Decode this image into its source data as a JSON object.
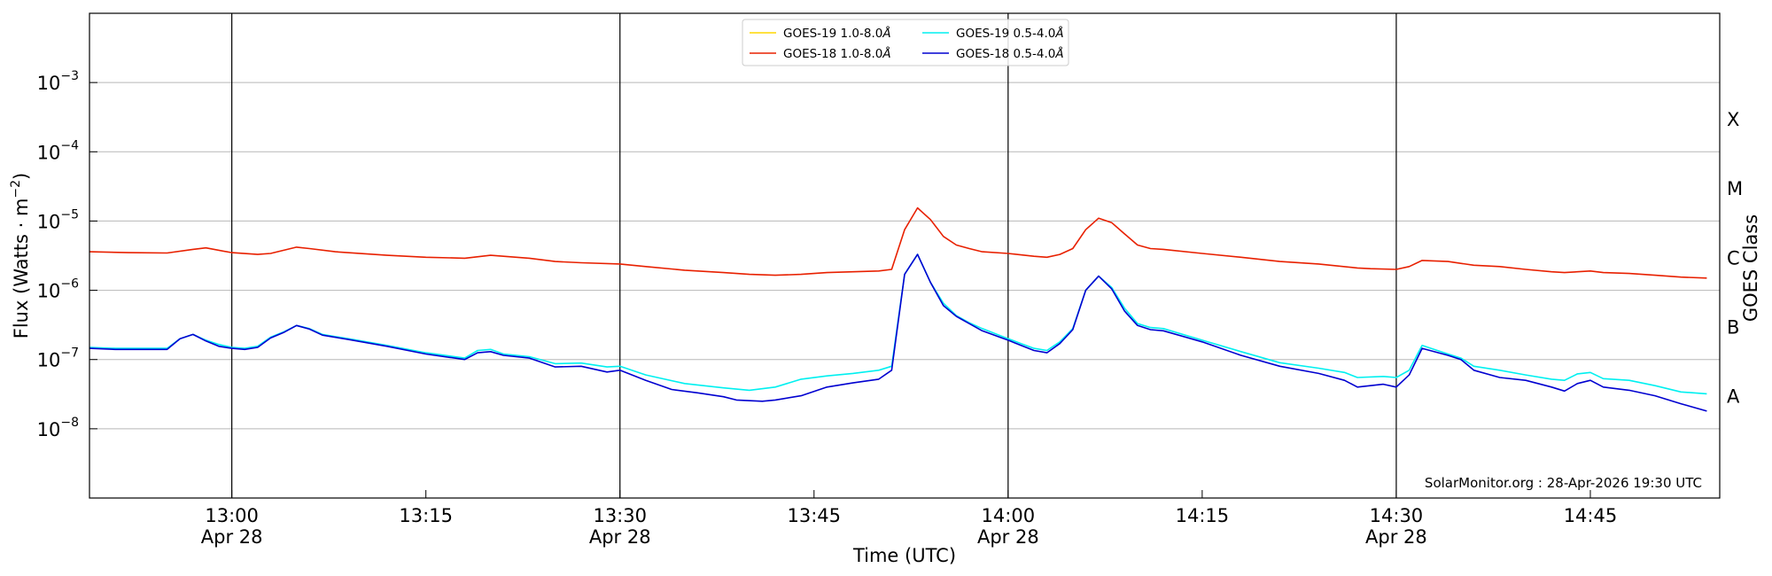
{
  "chart_data": {
    "type": "line",
    "title": "",
    "xlabel": "Time (UTC)",
    "ylabel_main": "Flux (Watts · m",
    "ylabel_sup": "−2",
    "ylabel_close": ")",
    "y_scale": "log",
    "ylim": [
      1e-09,
      0.01
    ],
    "x_range": [
      "12:49",
      "14:55"
    ],
    "grid": "horizontal at decades",
    "y_ticks": [
      {
        "value": 1e-08,
        "base": "10",
        "exp": "−8"
      },
      {
        "value": 1e-07,
        "base": "10",
        "exp": "−7"
      },
      {
        "value": 1e-06,
        "base": "10",
        "exp": "−6"
      },
      {
        "value": 1e-05,
        "base": "10",
        "exp": "−5"
      },
      {
        "value": 0.0001,
        "base": "10",
        "exp": "−4"
      },
      {
        "value": 0.001,
        "base": "10",
        "exp": "−3"
      }
    ],
    "x_ticks": [
      {
        "time": "13:00",
        "label": "13:00",
        "date": "Apr 28",
        "vline": true
      },
      {
        "time": "13:15",
        "label": "13:15",
        "date": "",
        "vline": false
      },
      {
        "time": "13:30",
        "label": "13:30",
        "date": "Apr 28",
        "vline": true
      },
      {
        "time": "13:45",
        "label": "13:45",
        "date": "",
        "vline": false
      },
      {
        "time": "14:00",
        "label": "14:00",
        "date": "Apr 28",
        "vline": true
      },
      {
        "time": "14:15",
        "label": "14:15",
        "date": "",
        "vline": false
      },
      {
        "time": "14:30",
        "label": "14:30",
        "date": "Apr 28",
        "vline": true
      },
      {
        "time": "14:45",
        "label": "14:45",
        "date": "",
        "vline": false
      }
    ],
    "right_axis": {
      "title": "GOES Class",
      "classes": [
        {
          "label": "A",
          "value": 3e-08
        },
        {
          "label": "B",
          "value": 3e-07
        },
        {
          "label": "C",
          "value": 3e-06
        },
        {
          "label": "M",
          "value": 3e-05
        },
        {
          "label": "X",
          "value": 0.0003
        }
      ]
    },
    "legend": {
      "placement": "top-center",
      "entries": [
        {
          "name": "GOES-19 1.0-8.0",
          "unit": "Å",
          "series": 0
        },
        {
          "name": "GOES-19 0.5-4.0",
          "unit": "Å",
          "series": 1
        },
        {
          "name": "GOES-18 1.0-8.0",
          "unit": "Å",
          "series": 2
        },
        {
          "name": "GOES-18 0.5-4.0",
          "unit": "Å",
          "series": 3
        }
      ]
    },
    "credit": "SolarMonitor.org : 28-Apr-2026 19:30 UTC",
    "series": [
      {
        "name": "GOES-19 1.0-8.0Å",
        "color": "#ffd700",
        "points": []
      },
      {
        "name": "GOES-19 0.5-4.0Å",
        "color": "#00f0f0",
        "points": [
          [
            "12:49",
            1.5e-07
          ],
          [
            "12:51",
            1.45e-07
          ],
          [
            "12:53",
            1.45e-07
          ],
          [
            "12:55",
            1.45e-07
          ],
          [
            "12:56",
            2e-07
          ],
          [
            "12:57",
            2.3e-07
          ],
          [
            "12:58",
            1.9e-07
          ],
          [
            "12:59",
            1.65e-07
          ],
          [
            "13:00",
            1.5e-07
          ],
          [
            "13:01",
            1.45e-07
          ],
          [
            "13:02",
            1.55e-07
          ],
          [
            "13:03",
            2.1e-07
          ],
          [
            "13:04",
            2.5e-07
          ],
          [
            "13:05",
            3.1e-07
          ],
          [
            "13:06",
            2.8e-07
          ],
          [
            "13:07",
            2.3e-07
          ],
          [
            "13:09",
            2e-07
          ],
          [
            "13:12",
            1.6e-07
          ],
          [
            "13:15",
            1.25e-07
          ],
          [
            "13:18",
            1.05e-07
          ],
          [
            "13:19",
            1.35e-07
          ],
          [
            "13:20",
            1.4e-07
          ],
          [
            "13:21",
            1.2e-07
          ],
          [
            "13:23",
            1.1e-07
          ],
          [
            "13:25",
            8.7e-08
          ],
          [
            "13:27",
            8.9e-08
          ],
          [
            "13:29",
            7.8e-08
          ],
          [
            "13:30",
            8e-08
          ],
          [
            "13:32",
            6e-08
          ],
          [
            "13:35",
            4.5e-08
          ],
          [
            "13:38",
            3.9e-08
          ],
          [
            "13:40",
            3.6e-08
          ],
          [
            "13:42",
            4e-08
          ],
          [
            "13:44",
            5.2e-08
          ],
          [
            "13:46",
            5.8e-08
          ],
          [
            "13:48",
            6.3e-08
          ],
          [
            "13:50",
            7e-08
          ],
          [
            "13:51",
            8e-08
          ],
          [
            "13:52",
            1.7e-06
          ],
          [
            "13:53",
            3.3e-06
          ],
          [
            "13:54",
            1.3e-06
          ],
          [
            "13:55",
            6.5e-07
          ],
          [
            "13:56",
            4.3e-07
          ],
          [
            "13:57",
            3.4e-07
          ],
          [
            "13:58",
            2.8e-07
          ],
          [
            "14:00",
            2e-07
          ],
          [
            "14:01",
            1.7e-07
          ],
          [
            "14:02",
            1.45e-07
          ],
          [
            "14:03",
            1.35e-07
          ],
          [
            "14:04",
            1.8e-07
          ],
          [
            "14:05",
            2.8e-07
          ],
          [
            "14:06",
            1e-06
          ],
          [
            "14:07",
            1.6e-06
          ],
          [
            "14:08",
            1.1e-06
          ],
          [
            "14:09",
            5.5e-07
          ],
          [
            "14:10",
            3.3e-07
          ],
          [
            "14:11",
            2.9e-07
          ],
          [
            "14:12",
            2.8e-07
          ],
          [
            "14:15",
            1.9e-07
          ],
          [
            "14:18",
            1.3e-07
          ],
          [
            "14:21",
            9e-08
          ],
          [
            "14:24",
            7.5e-08
          ],
          [
            "14:26",
            6.5e-08
          ],
          [
            "14:27",
            5.5e-08
          ],
          [
            "14:29",
            5.7e-08
          ],
          [
            "14:30",
            5.5e-08
          ],
          [
            "14:31",
            7e-08
          ],
          [
            "14:32",
            1.6e-07
          ],
          [
            "14:34",
            1.2e-07
          ],
          [
            "14:35",
            1.05e-07
          ],
          [
            "14:36",
            8e-08
          ],
          [
            "14:38",
            7e-08
          ],
          [
            "14:40",
            6e-08
          ],
          [
            "14:42",
            5.2e-08
          ],
          [
            "14:43",
            5e-08
          ],
          [
            "14:44",
            6.2e-08
          ],
          [
            "14:45",
            6.5e-08
          ],
          [
            "14:46",
            5.3e-08
          ],
          [
            "14:48",
            5e-08
          ],
          [
            "14:50",
            4.2e-08
          ],
          [
            "14:52",
            3.4e-08
          ],
          [
            "14:54",
            3.2e-08
          ]
        ]
      },
      {
        "name": "GOES-18 1.0-8.0Å",
        "color": "#e82000",
        "points": [
          [
            "12:49",
            3.6e-06
          ],
          [
            "12:52",
            3.5e-06
          ],
          [
            "12:55",
            3.45e-06
          ],
          [
            "12:57",
            3.9e-06
          ],
          [
            "12:58",
            4.1e-06
          ],
          [
            "13:00",
            3.5e-06
          ],
          [
            "13:02",
            3.3e-06
          ],
          [
            "13:03",
            3.4e-06
          ],
          [
            "13:05",
            4.2e-06
          ],
          [
            "13:06",
            4e-06
          ],
          [
            "13:08",
            3.6e-06
          ],
          [
            "13:12",
            3.2e-06
          ],
          [
            "13:15",
            3e-06
          ],
          [
            "13:18",
            2.9e-06
          ],
          [
            "13:20",
            3.2e-06
          ],
          [
            "13:23",
            2.9e-06
          ],
          [
            "13:25",
            2.6e-06
          ],
          [
            "13:27",
            2.5e-06
          ],
          [
            "13:30",
            2.4e-06
          ],
          [
            "13:32",
            2.2e-06
          ],
          [
            "13:35",
            1.95e-06
          ],
          [
            "13:38",
            1.8e-06
          ],
          [
            "13:40",
            1.7e-06
          ],
          [
            "13:42",
            1.65e-06
          ],
          [
            "13:44",
            1.7e-06
          ],
          [
            "13:46",
            1.8e-06
          ],
          [
            "13:48",
            1.85e-06
          ],
          [
            "13:50",
            1.9e-06
          ],
          [
            "13:51",
            2e-06
          ],
          [
            "13:52",
            7.5e-06
          ],
          [
            "13:53",
            1.55e-05
          ],
          [
            "13:54",
            1.05e-05
          ],
          [
            "13:55",
            6e-06
          ],
          [
            "13:56",
            4.5e-06
          ],
          [
            "13:57",
            4e-06
          ],
          [
            "13:58",
            3.6e-06
          ],
          [
            "14:00",
            3.4e-06
          ],
          [
            "14:02",
            3.1e-06
          ],
          [
            "14:03",
            3e-06
          ],
          [
            "14:04",
            3.3e-06
          ],
          [
            "14:05",
            4e-06
          ],
          [
            "14:06",
            7.5e-06
          ],
          [
            "14:07",
            1.1e-05
          ],
          [
            "14:08",
            9.5e-06
          ],
          [
            "14:09",
            6.5e-06
          ],
          [
            "14:10",
            4.5e-06
          ],
          [
            "14:11",
            4e-06
          ],
          [
            "14:12",
            3.9e-06
          ],
          [
            "14:15",
            3.4e-06
          ],
          [
            "14:18",
            3e-06
          ],
          [
            "14:21",
            2.6e-06
          ],
          [
            "14:24",
            2.4e-06
          ],
          [
            "14:27",
            2.1e-06
          ],
          [
            "14:28",
            2.05e-06
          ],
          [
            "14:30",
            2e-06
          ],
          [
            "14:31",
            2.2e-06
          ],
          [
            "14:32",
            2.7e-06
          ],
          [
            "14:34",
            2.6e-06
          ],
          [
            "14:36",
            2.3e-06
          ],
          [
            "14:38",
            2.2e-06
          ],
          [
            "14:40",
            2e-06
          ],
          [
            "14:42",
            1.85e-06
          ],
          [
            "14:43",
            1.8e-06
          ],
          [
            "14:45",
            1.9e-06
          ],
          [
            "14:46",
            1.8e-06
          ],
          [
            "14:48",
            1.75e-06
          ],
          [
            "14:50",
            1.65e-06
          ],
          [
            "14:52",
            1.55e-06
          ],
          [
            "14:54",
            1.5e-06
          ]
        ]
      },
      {
        "name": "GOES-18 0.5-4.0Å",
        "color": "#0000d0",
        "points": [
          [
            "12:49",
            1.45e-07
          ],
          [
            "12:51",
            1.4e-07
          ],
          [
            "12:53",
            1.4e-07
          ],
          [
            "12:55",
            1.4e-07
          ],
          [
            "12:56",
            2e-07
          ],
          [
            "12:57",
            2.3e-07
          ],
          [
            "12:58",
            1.85e-07
          ],
          [
            "12:59",
            1.55e-07
          ],
          [
            "13:00",
            1.45e-07
          ],
          [
            "13:01",
            1.4e-07
          ],
          [
            "13:02",
            1.5e-07
          ],
          [
            "13:03",
            2.05e-07
          ],
          [
            "13:04",
            2.45e-07
          ],
          [
            "13:05",
            3.1e-07
          ],
          [
            "13:06",
            2.75e-07
          ],
          [
            "13:07",
            2.25e-07
          ],
          [
            "13:09",
            1.95e-07
          ],
          [
            "13:12",
            1.55e-07
          ],
          [
            "13:15",
            1.2e-07
          ],
          [
            "13:18",
            1e-07
          ],
          [
            "13:19",
            1.25e-07
          ],
          [
            "13:20",
            1.3e-07
          ],
          [
            "13:21",
            1.15e-07
          ],
          [
            "13:23",
            1.05e-07
          ],
          [
            "13:25",
            7.8e-08
          ],
          [
            "13:27",
            8e-08
          ],
          [
            "13:29",
            6.6e-08
          ],
          [
            "13:30",
            7e-08
          ],
          [
            "13:32",
            5e-08
          ],
          [
            "13:34",
            3.7e-08
          ],
          [
            "13:36",
            3.3e-08
          ],
          [
            "13:38",
            2.9e-08
          ],
          [
            "13:39",
            2.6e-08
          ],
          [
            "13:41",
            2.5e-08
          ],
          [
            "13:42",
            2.6e-08
          ],
          [
            "13:44",
            3e-08
          ],
          [
            "13:46",
            4e-08
          ],
          [
            "13:48",
            4.6e-08
          ],
          [
            "13:50",
            5.2e-08
          ],
          [
            "13:51",
            7e-08
          ],
          [
            "13:52",
            1.7e-06
          ],
          [
            "13:53",
            3.3e-06
          ],
          [
            "13:54",
            1.3e-06
          ],
          [
            "13:55",
            6e-07
          ],
          [
            "13:56",
            4.2e-07
          ],
          [
            "13:57",
            3.3e-07
          ],
          [
            "13:58",
            2.6e-07
          ],
          [
            "14:00",
            1.9e-07
          ],
          [
            "14:01",
            1.6e-07
          ],
          [
            "14:02",
            1.35e-07
          ],
          [
            "14:03",
            1.25e-07
          ],
          [
            "14:04",
            1.7e-07
          ],
          [
            "14:05",
            2.7e-07
          ],
          [
            "14:06",
            1e-06
          ],
          [
            "14:07",
            1.6e-06
          ],
          [
            "14:08",
            1.05e-06
          ],
          [
            "14:09",
            5e-07
          ],
          [
            "14:10",
            3.1e-07
          ],
          [
            "14:11",
            2.7e-07
          ],
          [
            "14:12",
            2.6e-07
          ],
          [
            "14:15",
            1.8e-07
          ],
          [
            "14:18",
            1.15e-07
          ],
          [
            "14:21",
            8e-08
          ],
          [
            "14:24",
            6.3e-08
          ],
          [
            "14:26",
            5e-08
          ],
          [
            "14:27",
            4e-08
          ],
          [
            "14:29",
            4.4e-08
          ],
          [
            "14:30",
            4e-08
          ],
          [
            "14:31",
            6e-08
          ],
          [
            "14:32",
            1.45e-07
          ],
          [
            "14:34",
            1.15e-07
          ],
          [
            "14:35",
            1e-07
          ],
          [
            "14:36",
            7e-08
          ],
          [
            "14:38",
            5.5e-08
          ],
          [
            "14:40",
            5e-08
          ],
          [
            "14:42",
            4e-08
          ],
          [
            "14:43",
            3.5e-08
          ],
          [
            "14:44",
            4.5e-08
          ],
          [
            "14:45",
            5e-08
          ],
          [
            "14:46",
            4e-08
          ],
          [
            "14:48",
            3.6e-08
          ],
          [
            "14:50",
            3e-08
          ],
          [
            "14:52",
            2.3e-08
          ],
          [
            "14:54",
            1.8e-08
          ]
        ]
      }
    ]
  }
}
